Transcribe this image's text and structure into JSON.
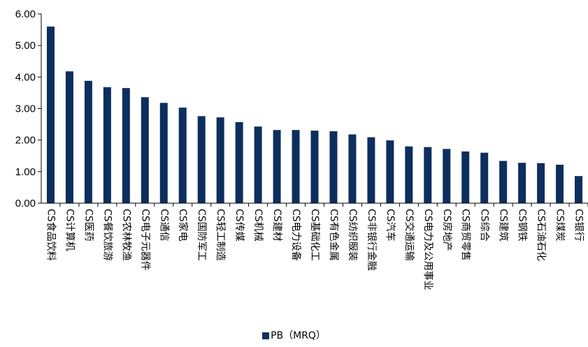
{
  "colors": {
    "bar": "#0d2f5e",
    "axis": "#000000"
  },
  "legend": {
    "label": "PB（MRQ）"
  },
  "chart_data": {
    "type": "bar",
    "categories": [
      "CS食品饮料",
      "CS计算机",
      "CS医药",
      "CS餐饮旅游",
      "CS农林牧渔",
      "CS电子元器件",
      "CS通信",
      "CS家电",
      "CS国防军工",
      "CS轻工制造",
      "CS传媒",
      "CS机械",
      "CS建材",
      "CS电力设备",
      "CS基础化工",
      "CS有色金属",
      "CS纺织服装",
      "CS非银行金融",
      "CS汽车",
      "CS交通运输",
      "CS电力及公用事业",
      "CS房地产",
      "CS商贸零售",
      "CS综合",
      "CS建筑",
      "CS钢铁",
      "CS石油石化",
      "CS煤炭",
      "CS银行"
    ],
    "series": [
      {
        "name": "PB（MRQ）",
        "values": [
          5.6,
          4.18,
          3.88,
          3.68,
          3.65,
          3.36,
          3.18,
          3.03,
          2.76,
          2.72,
          2.57,
          2.43,
          2.32,
          2.32,
          2.3,
          2.28,
          2.18,
          2.09,
          1.99,
          1.8,
          1.78,
          1.72,
          1.64,
          1.6,
          1.34,
          1.28,
          1.27,
          1.22,
          0.86
        ]
      }
    ],
    "yticks": [
      "0.00",
      "1.00",
      "2.00",
      "3.00",
      "4.00",
      "5.00",
      "6.00"
    ],
    "ylim": [
      0,
      6
    ],
    "grid": false,
    "legend_position": "bottom"
  }
}
